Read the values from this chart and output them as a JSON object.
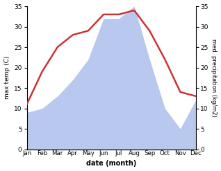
{
  "months": [
    "Jan",
    "Feb",
    "Mar",
    "Apr",
    "May",
    "Jun",
    "Jul",
    "Aug",
    "Sep",
    "Oct",
    "Nov",
    "Dec"
  ],
  "temp": [
    11,
    19,
    25,
    28,
    29,
    33,
    33,
    34,
    29,
    22,
    14,
    13
  ],
  "precip": [
    9,
    10,
    13,
    17,
    22,
    32,
    32,
    35,
    22,
    10,
    5,
    12
  ],
  "temp_color": "#cc3333",
  "precip_color": "#b8c8ee",
  "left_ylabel": "max temp (C)",
  "right_ylabel": "med. precipitation (kg/m2)",
  "xlabel": "date (month)",
  "ylim_left": [
    0,
    35
  ],
  "ylim_right": [
    0,
    35
  ],
  "yticks": [
    0,
    5,
    10,
    15,
    20,
    25,
    30,
    35
  ]
}
